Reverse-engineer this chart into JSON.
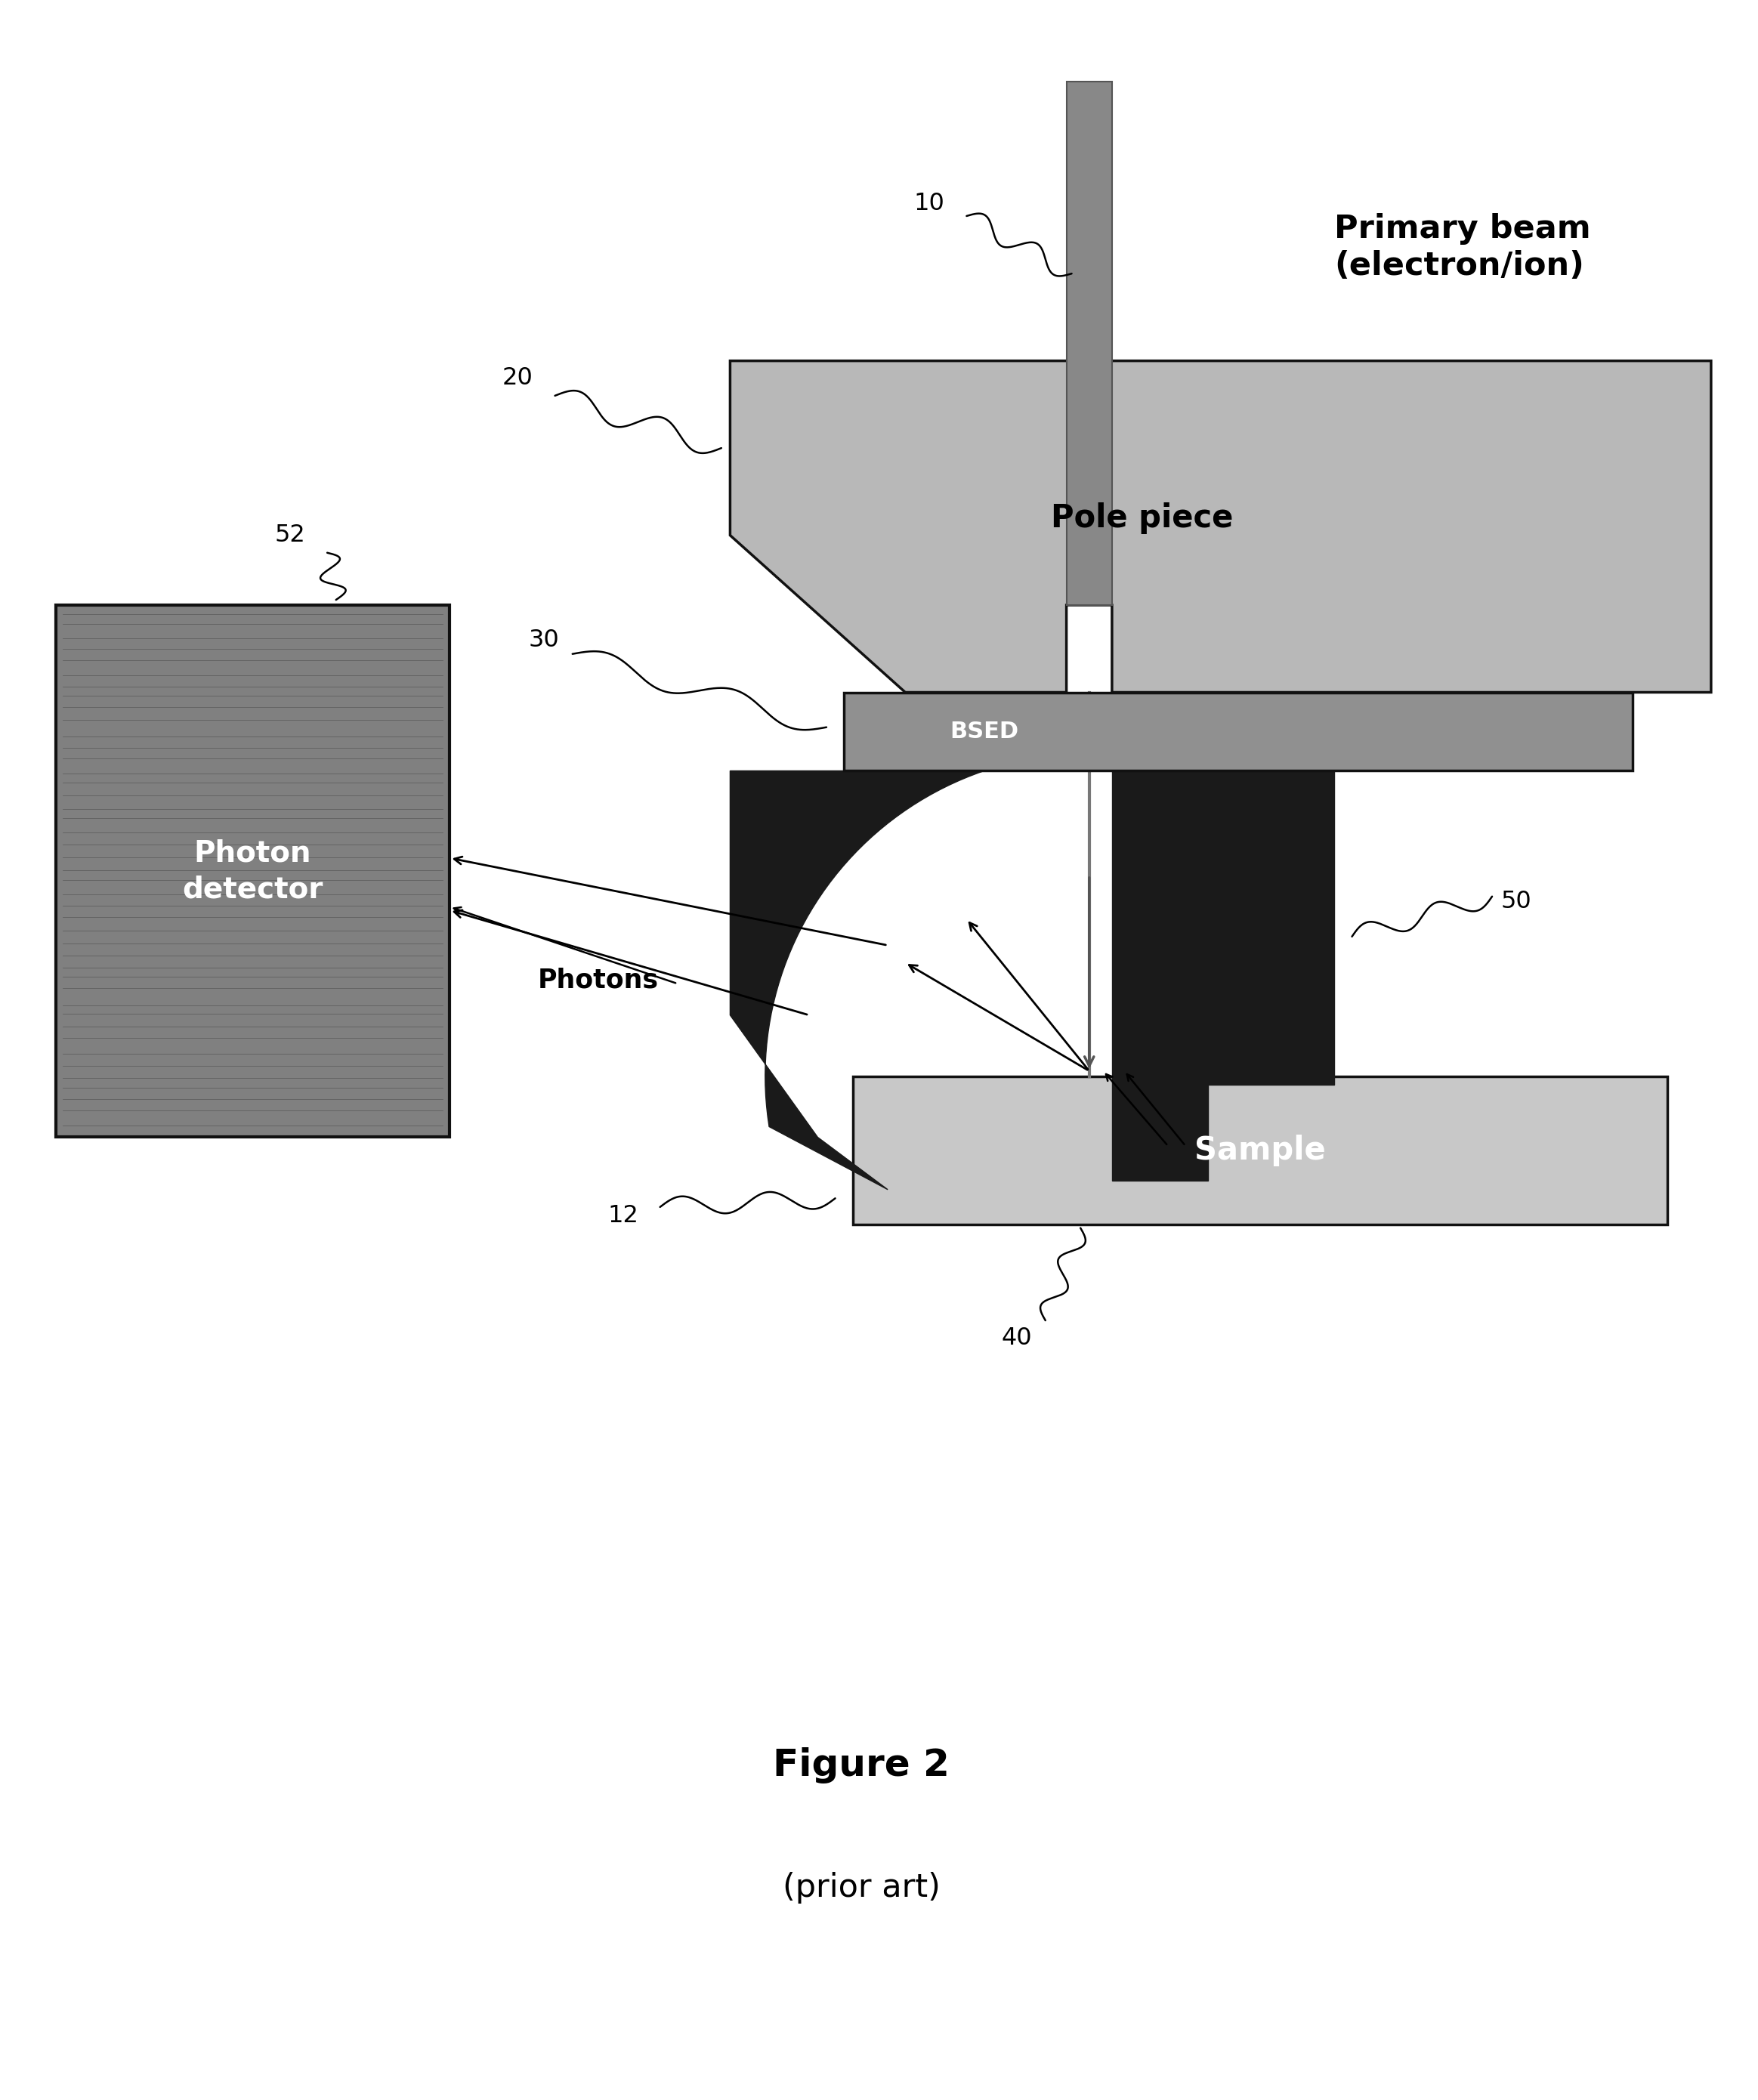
{
  "bg_color": "#ffffff",
  "title": "Figure 2",
  "subtitle": "(prior art)",
  "primary_beam_label": "Primary beam\n(electron/ion)",
  "pole_piece_label": "Pole piece",
  "bsed_label": "BSED",
  "sample_label": "Sample",
  "photon_detector_label": "Photon\ndetector",
  "photons_label": "Photons",
  "label_10": "10",
  "label_20": "20",
  "label_30": "30",
  "label_40": "40",
  "label_50": "50",
  "label_52": "52",
  "label_12": "12",
  "pole_piece_color": "#b8b8b8",
  "bsed_color": "#909090",
  "sample_color": "#c8c8c8",
  "photon_det_color": "#808080",
  "mirror_color": "#1a1a1a",
  "beam_col_color": "#888888",
  "edge_color": "#111111"
}
